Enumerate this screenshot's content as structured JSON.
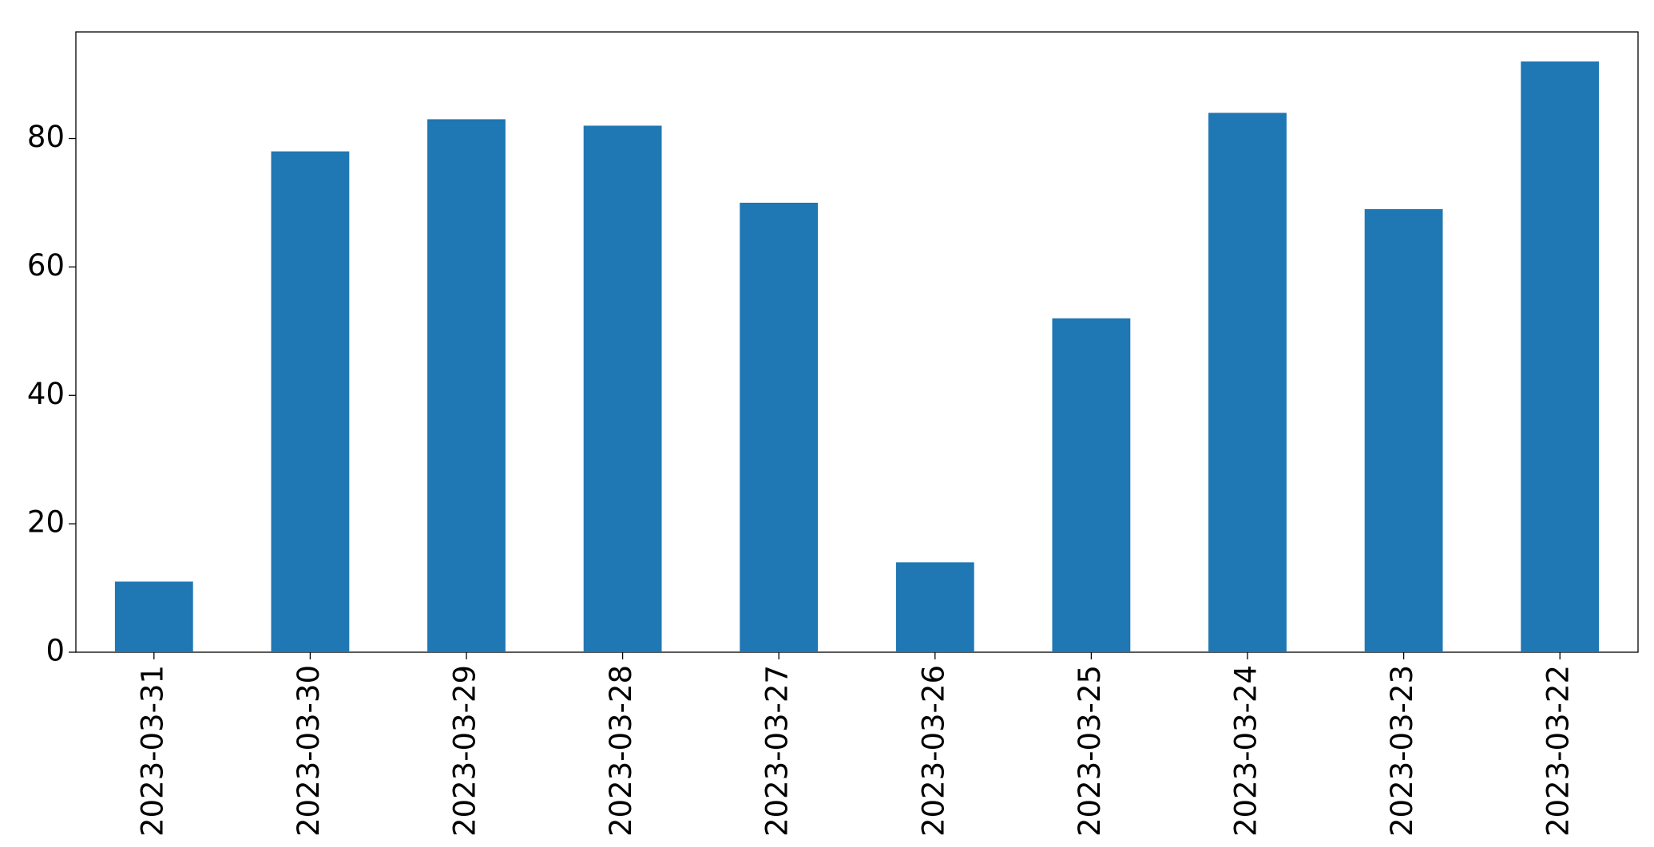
{
  "chart_data": {
    "type": "bar",
    "categories": [
      "2023-03-31",
      "2023-03-30",
      "2023-03-29",
      "2023-03-28",
      "2023-03-27",
      "2023-03-26",
      "2023-03-25",
      "2023-03-24",
      "2023-03-23",
      "2023-03-22"
    ],
    "values": [
      11,
      78,
      83,
      82,
      70,
      14,
      52,
      84,
      69,
      92
    ],
    "color": "#1f77b4",
    "ylim": [
      0,
      96.6
    ],
    "yticks": [
      0,
      20,
      40,
      60,
      80
    ],
    "grid": false
  }
}
